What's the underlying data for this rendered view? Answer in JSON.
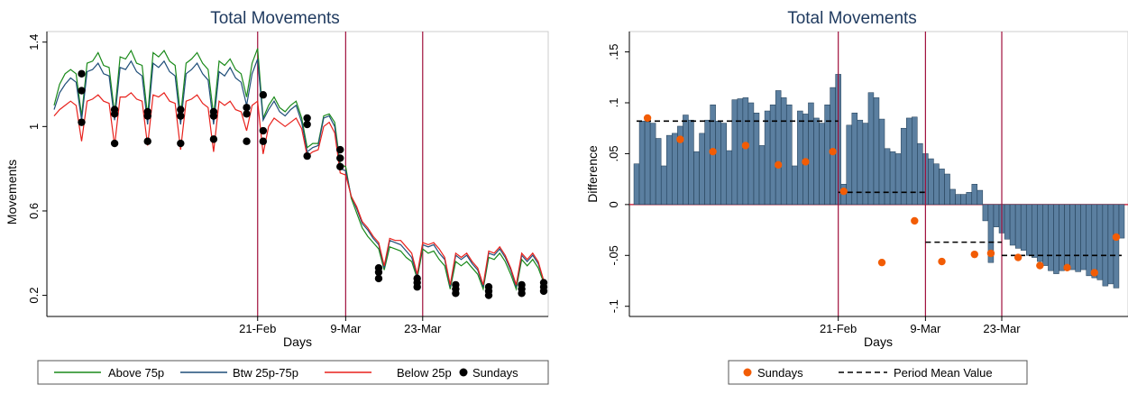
{
  "colors": {
    "above75": "#1a8a1a",
    "btw25_75": "#1f4e79",
    "below25": "#e8211c",
    "sundays_left": "#000000",
    "sundays_right": "#f25c05",
    "bars": "#5b7fa0",
    "bar_edge": "#1e3a52",
    "vlines": "#a0103c",
    "zero_line": "#c8102e",
    "title": "#1f3a5f"
  },
  "chart_data": [
    {
      "type": "line",
      "title": "Total Movements",
      "xlabel": "Days",
      "ylabel": "Movements",
      "y_ticks": [
        "0.2",
        "0.6",
        "1",
        "1.4"
      ],
      "y_tick_values": [
        0.2,
        0.6,
        1.0,
        1.4
      ],
      "ylim": [
        0.1,
        1.45
      ],
      "x_day_range": [
        0,
        89
      ],
      "x_ticks": [
        {
          "day": 37,
          "label": "21-Feb"
        },
        {
          "day": 53,
          "label": "9-Mar"
        },
        {
          "day": 67,
          "label": "23-Mar"
        }
      ],
      "vlines_day": [
        37,
        53,
        67
      ],
      "grid": false,
      "legend_position": "bottom",
      "series": [
        {
          "name": "Above 75p",
          "values": [
            1.1,
            1.2,
            1.25,
            1.27,
            1.25,
            1.05,
            1.3,
            1.31,
            1.35,
            1.29,
            1.28,
            1.06,
            1.33,
            1.32,
            1.36,
            1.3,
            1.29,
            1.05,
            1.35,
            1.33,
            1.36,
            1.31,
            1.29,
            1.05,
            1.3,
            1.32,
            1.35,
            1.3,
            1.27,
            1.05,
            1.31,
            1.29,
            1.32,
            1.27,
            1.25,
            1.14,
            1.3,
            1.37,
            1.04,
            1.1,
            1.14,
            1.09,
            1.07,
            1.1,
            1.12,
            1.04,
            0.9,
            0.92,
            0.92,
            1.05,
            1.06,
            1.02,
            0.82,
            0.81,
            0.66,
            0.59,
            0.52,
            0.48,
            0.45,
            0.42,
            0.32,
            0.43,
            0.42,
            0.41,
            0.38,
            0.36,
            0.28,
            0.42,
            0.4,
            0.41,
            0.37,
            0.34,
            0.23,
            0.36,
            0.34,
            0.36,
            0.33,
            0.3,
            0.23,
            0.38,
            0.37,
            0.4,
            0.36,
            0.3,
            0.23,
            0.37,
            0.34,
            0.37,
            0.33,
            0.26
          ]
        },
        {
          "name": "Btw 25p-75p",
          "values": [
            1.08,
            1.16,
            1.2,
            1.23,
            1.21,
            1.03,
            1.26,
            1.27,
            1.3,
            1.25,
            1.24,
            1.03,
            1.28,
            1.27,
            1.31,
            1.26,
            1.24,
            1.01,
            1.3,
            1.28,
            1.31,
            1.26,
            1.24,
            1.01,
            1.25,
            1.27,
            1.3,
            1.25,
            1.22,
            1.01,
            1.26,
            1.24,
            1.28,
            1.23,
            1.21,
            1.1,
            1.25,
            1.32,
            1.03,
            1.08,
            1.12,
            1.07,
            1.05,
            1.08,
            1.1,
            1.02,
            0.88,
            0.9,
            0.91,
            1.04,
            1.05,
            1.0,
            0.8,
            0.79,
            0.67,
            0.61,
            0.54,
            0.51,
            0.47,
            0.44,
            0.33,
            0.46,
            0.45,
            0.44,
            0.41,
            0.38,
            0.29,
            0.44,
            0.43,
            0.44,
            0.4,
            0.37,
            0.24,
            0.39,
            0.37,
            0.39,
            0.35,
            0.32,
            0.24,
            0.4,
            0.39,
            0.42,
            0.38,
            0.32,
            0.24,
            0.39,
            0.36,
            0.39,
            0.35,
            0.27
          ]
        },
        {
          "name": "Below 25p",
          "values": [
            1.05,
            1.08,
            1.1,
            1.12,
            1.1,
            0.93,
            1.12,
            1.13,
            1.15,
            1.12,
            1.11,
            0.91,
            1.14,
            1.14,
            1.16,
            1.13,
            1.12,
            0.91,
            1.15,
            1.14,
            1.16,
            1.12,
            1.11,
            0.89,
            1.12,
            1.13,
            1.15,
            1.11,
            1.09,
            0.88,
            1.12,
            1.1,
            1.12,
            1.08,
            1.07,
            0.98,
            1.1,
            1.12,
            0.87,
            1.0,
            1.04,
            1.02,
            1.0,
            1.02,
            1.04,
            0.99,
            0.86,
            0.88,
            0.89,
            1.0,
            1.02,
            0.97,
            0.78,
            0.77,
            0.67,
            0.62,
            0.55,
            0.52,
            0.48,
            0.45,
            0.34,
            0.47,
            0.46,
            0.46,
            0.43,
            0.4,
            0.3,
            0.45,
            0.44,
            0.45,
            0.42,
            0.38,
            0.25,
            0.4,
            0.38,
            0.4,
            0.36,
            0.33,
            0.25,
            0.41,
            0.4,
            0.43,
            0.39,
            0.33,
            0.25,
            0.4,
            0.37,
            0.4,
            0.36,
            0.27
          ]
        }
      ],
      "sundays": {
        "name": "Sundays",
        "days": [
          5,
          11,
          17,
          23,
          29,
          35,
          38,
          46,
          52,
          59,
          66,
          73,
          79,
          85,
          89
        ],
        "groups": [
          [
            1.25,
            1.17,
            1.02
          ],
          [
            1.08,
            1.06,
            0.92
          ],
          [
            1.07,
            1.05,
            0.93
          ],
          [
            1.08,
            1.05,
            0.92
          ],
          [
            1.07,
            1.05,
            0.94
          ],
          [
            1.09,
            1.06,
            0.93
          ],
          [
            1.15,
            0.98,
            0.93
          ],
          [
            1.04,
            1.01,
            0.86
          ],
          [
            0.89,
            0.85,
            0.81
          ],
          [
            0.33,
            0.31,
            0.28
          ],
          [
            0.28,
            0.26,
            0.24
          ],
          [
            0.25,
            0.23,
            0.21
          ],
          [
            0.24,
            0.22,
            0.2
          ],
          [
            0.25,
            0.23,
            0.21
          ],
          [
            0.26,
            0.24,
            0.22
          ]
        ]
      }
    },
    {
      "type": "bar",
      "title": "Total Movements",
      "xlabel": "Days",
      "ylabel": "Difference",
      "y_ticks": [
        "-.1",
        "-.05",
        "0",
        ".05",
        ".1",
        ".15"
      ],
      "y_tick_values": [
        -0.1,
        -0.05,
        0,
        0.05,
        0.1,
        0.15
      ],
      "ylim": [
        -0.11,
        0.17
      ],
      "x_day_range": [
        0,
        89
      ],
      "x_ticks": [
        {
          "day": 37,
          "label": "21-Feb"
        },
        {
          "day": 53,
          "label": "9-Mar"
        },
        {
          "day": 67,
          "label": "23-Mar"
        }
      ],
      "vlines_day": [
        37,
        53,
        67
      ],
      "grid": false,
      "legend_position": "bottom",
      "values": [
        0.04,
        0.082,
        0.085,
        0.08,
        0.065,
        0.038,
        0.068,
        0.07,
        0.077,
        0.088,
        0.083,
        0.052,
        0.07,
        0.083,
        0.098,
        0.082,
        0.08,
        0.053,
        0.103,
        0.104,
        0.105,
        0.1,
        0.09,
        0.058,
        0.092,
        0.098,
        0.112,
        0.105,
        0.098,
        0.038,
        0.092,
        0.089,
        0.1,
        0.085,
        0.08,
        0.098,
        0.115,
        0.128,
        0.02,
        0.078,
        0.09,
        0.083,
        0.08,
        0.11,
        0.105,
        0.084,
        0.055,
        0.052,
        0.05,
        0.075,
        0.085,
        0.086,
        0.06,
        0.05,
        0.045,
        0.04,
        0.035,
        0.03,
        0.015,
        0.01,
        0.01,
        0.012,
        0.02,
        0.014,
        -0.016,
        -0.057,
        -0.022,
        -0.028,
        -0.034,
        -0.04,
        -0.043,
        -0.045,
        -0.05,
        -0.052,
        -0.056,
        -0.06,
        -0.065,
        -0.068,
        -0.065,
        -0.064,
        -0.064,
        -0.066,
        -0.064,
        -0.07,
        -0.072,
        -0.074,
        -0.08,
        -0.078,
        -0.082,
        -0.033
      ],
      "sundays": {
        "name": "Sundays",
        "points": [
          [
            2,
            0.085
          ],
          [
            8,
            0.064
          ],
          [
            14,
            0.052
          ],
          [
            20,
            0.058
          ],
          [
            26,
            0.039
          ],
          [
            31,
            0.042
          ],
          [
            36,
            0.052
          ],
          [
            38,
            0.013
          ],
          [
            45,
            -0.057
          ],
          [
            51,
            -0.016
          ],
          [
            56,
            -0.056
          ],
          [
            62,
            -0.049
          ],
          [
            65,
            -0.048
          ],
          [
            70,
            -0.052
          ],
          [
            74,
            -0.06
          ],
          [
            79,
            -0.062
          ],
          [
            84,
            -0.067
          ],
          [
            88,
            -0.032
          ]
        ]
      },
      "period_means": {
        "name": "Period Mean Value",
        "segments": [
          {
            "from": 0,
            "to": 37,
            "value": 0.082
          },
          {
            "from": 37,
            "to": 53,
            "value": 0.012
          },
          {
            "from": 53,
            "to": 67,
            "value": -0.037
          },
          {
            "from": 67,
            "to": 89,
            "value": -0.05
          }
        ]
      }
    }
  ]
}
